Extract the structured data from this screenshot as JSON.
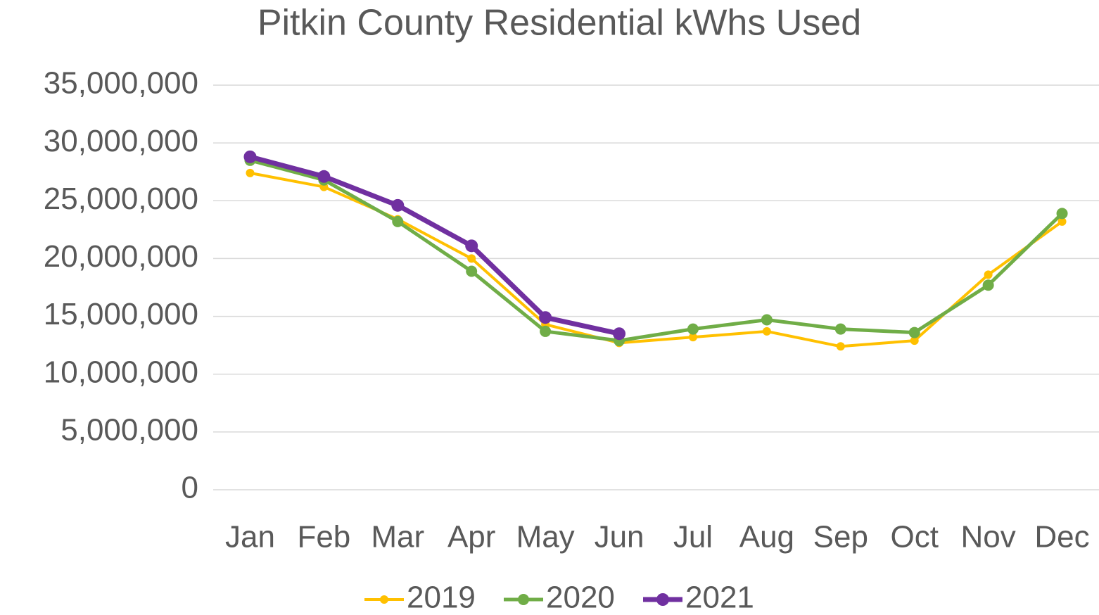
{
  "chart_data": {
    "type": "line",
    "title": "Pitkin County Residential kWhs Used",
    "categories": [
      "Jan",
      "Feb",
      "Mar",
      "Apr",
      "May",
      "Jun",
      "Jul",
      "Aug",
      "Sep",
      "Oct",
      "Nov",
      "Dec"
    ],
    "series": [
      {
        "name": "2019",
        "color": "#FFC000",
        "values": [
          27400000,
          26200000,
          23400000,
          20000000,
          14300000,
          12700000,
          13200000,
          13700000,
          12400000,
          12900000,
          18600000,
          23200000
        ]
      },
      {
        "name": "2020",
        "color": "#70AD47",
        "values": [
          28500000,
          26800000,
          23200000,
          18900000,
          13700000,
          12900000,
          13900000,
          14700000,
          13900000,
          13600000,
          17700000,
          23900000
        ]
      },
      {
        "name": "2021",
        "color": "#7030A0",
        "values": [
          28800000,
          27100000,
          24600000,
          21100000,
          14900000,
          13500000,
          null,
          null,
          null,
          null,
          null,
          null
        ]
      }
    ],
    "ylim": [
      0,
      35000000
    ],
    "yticks": [
      0,
      {
        "value": 5000000,
        "label": "5,000,000"
      },
      {
        "value": 10000000,
        "label": "10,000,000"
      },
      {
        "value": 15000000,
        "label": "15,000,000"
      },
      {
        "value": 20000000,
        "label": "20,000,000"
      },
      {
        "value": 25000000,
        "label": "25,000,000"
      },
      {
        "value": 30000000,
        "label": "30,000,000"
      },
      {
        "value": 35000000,
        "label": "35,000,000"
      }
    ],
    "grid": true,
    "legend": "bottom"
  }
}
